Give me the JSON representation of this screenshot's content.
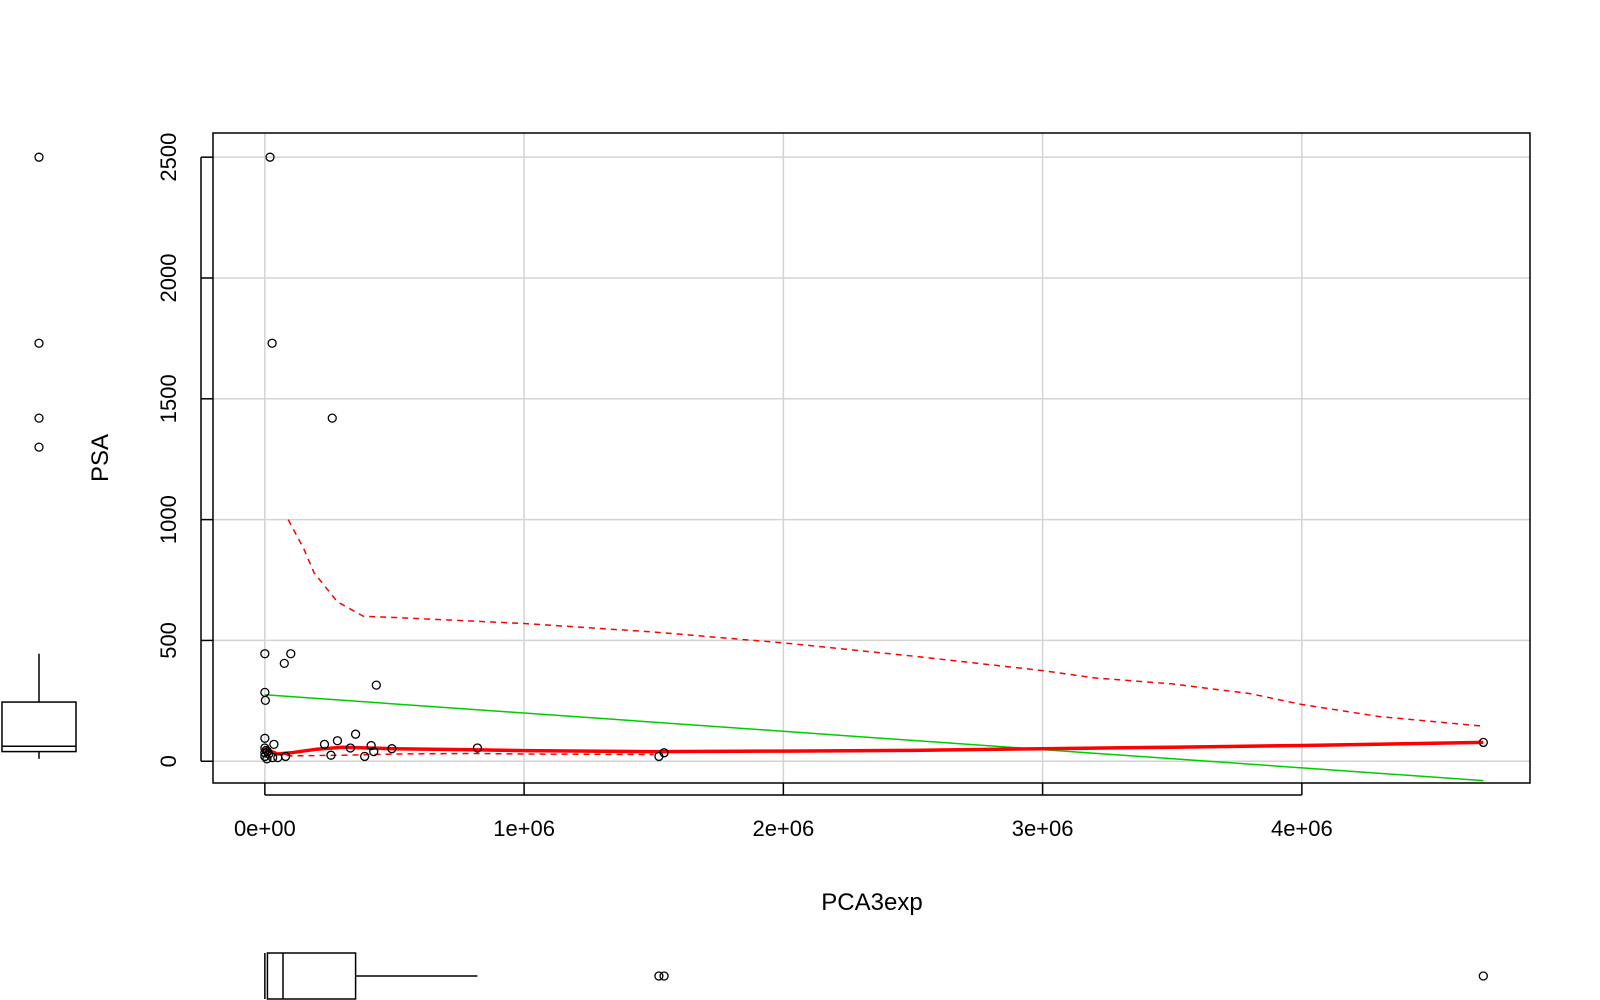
{
  "chart_data": {
    "type": "scatter",
    "title": "",
    "xlabel": "PCA3exp",
    "ylabel": "PSA",
    "xlim": [
      -200000,
      4880000
    ],
    "ylim": [
      -90,
      2600
    ],
    "grid": true,
    "x_ticks": [
      0,
      1000000,
      2000000,
      3000000,
      4000000
    ],
    "x_tick_labels": [
      "0e+00",
      "1e+06",
      "2e+06",
      "3e+06",
      "4e+06"
    ],
    "y_ticks": [
      0,
      500,
      1000,
      1500,
      2000,
      2500
    ],
    "y_tick_labels": [
      "0",
      "500",
      "1000",
      "1500",
      "2000",
      "2500"
    ],
    "points": [
      {
        "x": 20000,
        "y": 2500
      },
      {
        "x": 28000,
        "y": 1730
      },
      {
        "x": 260000,
        "y": 1420
      },
      {
        "x": 100000,
        "y": 445
      },
      {
        "x": 0,
        "y": 445
      },
      {
        "x": 75000,
        "y": 405
      },
      {
        "x": 430000,
        "y": 315
      },
      {
        "x": 0,
        "y": 285
      },
      {
        "x": 2000,
        "y": 252
      },
      {
        "x": 350000,
        "y": 112
      },
      {
        "x": 0,
        "y": 95
      },
      {
        "x": 280000,
        "y": 85
      },
      {
        "x": 230000,
        "y": 70
      },
      {
        "x": 35000,
        "y": 70
      },
      {
        "x": 410000,
        "y": 65
      },
      {
        "x": 820000,
        "y": 55
      },
      {
        "x": 490000,
        "y": 52
      },
      {
        "x": 330000,
        "y": 55
      },
      {
        "x": 0,
        "y": 55
      },
      {
        "x": 5000,
        "y": 45
      },
      {
        "x": 10000,
        "y": 40
      },
      {
        "x": 420000,
        "y": 40
      },
      {
        "x": 1540000,
        "y": 35
      },
      {
        "x": 0,
        "y": 35
      },
      {
        "x": 15000,
        "y": 30
      },
      {
        "x": 255000,
        "y": 25
      },
      {
        "x": 80000,
        "y": 20
      },
      {
        "x": 385000,
        "y": 20
      },
      {
        "x": 1520000,
        "y": 20
      },
      {
        "x": 0,
        "y": 20
      },
      {
        "x": 50000,
        "y": 15
      },
      {
        "x": 8000,
        "y": 10
      },
      {
        "x": 30000,
        "y": 15
      },
      {
        "x": 4700000,
        "y": 78
      }
    ],
    "series": [
      {
        "type": "line",
        "color": "#00CD00",
        "style": "solid",
        "x": [
          0,
          4700000
        ],
        "y": [
          275,
          -80
        ]
      },
      {
        "type": "line",
        "color": "#FF0000",
        "style": "solid-thick",
        "x": [
          0,
          50000,
          100000,
          200000,
          300000,
          400000,
          500000,
          800000,
          1000000,
          1500000,
          2000000,
          2500000,
          3000000,
          3500000,
          4000000,
          4700000
        ],
        "y": [
          50,
          30,
          35,
          50,
          58,
          55,
          52,
          48,
          44,
          40,
          42,
          45,
          52,
          58,
          65,
          78
        ]
      },
      {
        "type": "line",
        "color": "#FF0000",
        "style": "dashed",
        "x": [
          90000,
          150000,
          190000,
          280000,
          380000,
          500000,
          1000000,
          1500000,
          2000000,
          2500000,
          3000000,
          3200000,
          3500000,
          3800000,
          4000000,
          4300000,
          4700000
        ],
        "y": [
          1000,
          880,
          780,
          660,
          600,
          595,
          570,
          535,
          490,
          435,
          375,
          345,
          320,
          280,
          235,
          185,
          145
        ]
      },
      {
        "type": "line",
        "color": "#FF0000",
        "style": "dashed",
        "x": [
          0,
          100000,
          300000,
          500000,
          800000,
          1000000,
          1500000
        ],
        "y": [
          40,
          22,
          25,
          30,
          32,
          30,
          28
        ]
      }
    ],
    "y_boxplot": {
      "min": 10,
      "q1": 40,
      "median": 62,
      "q3": 245,
      "whisker_max": 445,
      "outliers": [
        1300,
        1420,
        1730,
        2500
      ]
    },
    "x_boxplot": {
      "min": 0,
      "q1": 10000,
      "median": 70000,
      "q3": 350000,
      "whisker_max": 820000,
      "outliers": [
        1520000,
        1540000,
        4700000
      ]
    }
  }
}
